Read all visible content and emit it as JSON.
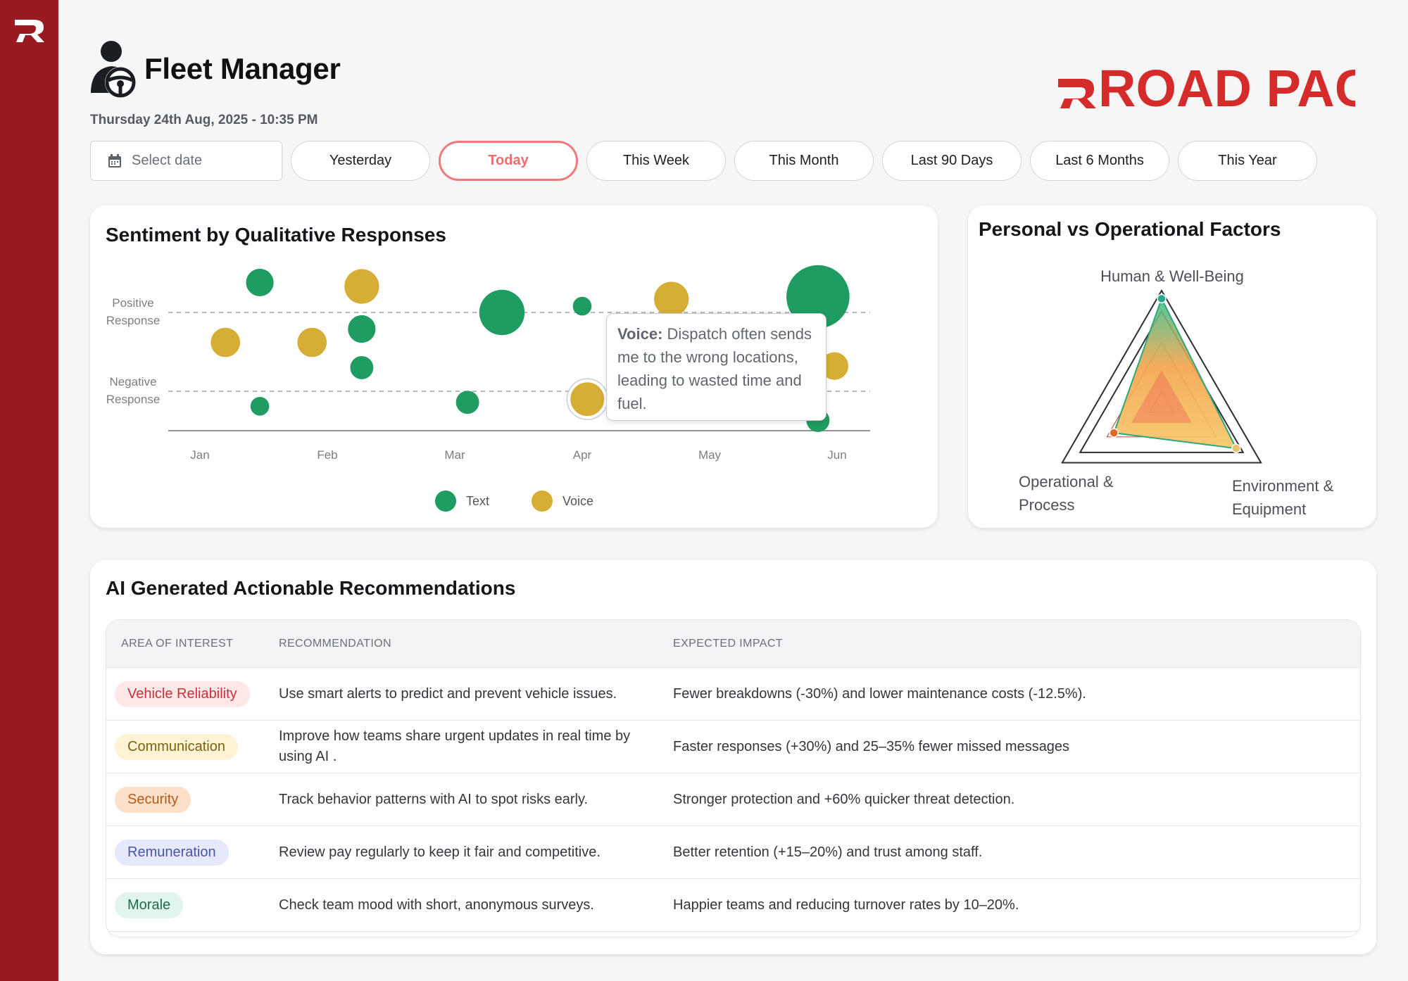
{
  "app": {
    "brand": "ROAD PACT",
    "title": "Fleet Manager",
    "datetime": "Thursday 24th Aug, 2025 - 10:35 PM"
  },
  "filters": {
    "date_placeholder": "Select date",
    "options": [
      "Yesterday",
      "Today",
      "This Week",
      "This Month",
      "Last 90 Days",
      "Last 6 Months",
      "This Year"
    ],
    "selected": "Today"
  },
  "sentiment": {
    "title": "Sentiment by Qualitative Responses",
    "tooltip": {
      "label": "Voice:",
      "text": "Dispatch often sends me to the wrong locations, leading to wasted time and fuel."
    },
    "chart_data": {
      "type": "scatter",
      "x_ticks": [
        "Jan",
        "Feb",
        "Mar",
        "Apr",
        "May",
        "Jun"
      ],
      "y_ticks": [
        "Positive Response",
        "Negative Response"
      ],
      "series": [
        {
          "name": "Text",
          "color": "#1f9c62",
          "points": [
            {
              "x": 1.47,
              "y": 1.38,
              "size": 2
            },
            {
              "x": 2.27,
              "y": 0.79,
              "size": 2
            },
            {
              "x": 1.47,
              "y": -0.19,
              "size": 1
            },
            {
              "x": 2.27,
              "y": 0.3,
              "size": 1.5
            },
            {
              "x": 3.37,
              "y": 1.0,
              "size": 4
            },
            {
              "x": 3.1,
              "y": -0.14,
              "size": 1.5
            },
            {
              "x": 4.0,
              "y": 1.08,
              "size": 1
            },
            {
              "x": 5.85,
              "y": 1.2,
              "size": 6
            },
            {
              "x": 5.85,
              "y": -0.37,
              "size": 1.5
            }
          ]
        },
        {
          "name": "Voice",
          "color": "#d6ae35",
          "points": [
            {
              "x": 1.2,
              "y": 0.62,
              "size": 2.2
            },
            {
              "x": 1.88,
              "y": 0.62,
              "size": 2.2
            },
            {
              "x": 2.27,
              "y": 1.33,
              "size": 2.8
            },
            {
              "x": 4.7,
              "y": 1.17,
              "size": 2.8
            },
            {
              "x": 5.98,
              "y": 0.32,
              "size": 2
            },
            {
              "x": 4.04,
              "y": -0.1,
              "size": 3
            }
          ]
        }
      ]
    }
  },
  "factors": {
    "title": "Personal vs Operational Factors",
    "chart_data": {
      "type": "radar",
      "axes": [
        "Human & Well-Being",
        "Operational & Process",
        "Environment & Equipment"
      ],
      "series": [
        {
          "values": [
            0.93,
            0.48,
            0.75
          ]
        }
      ]
    }
  },
  "recommendations": {
    "title": "AI Generated Actionable Recommendations",
    "headers": [
      "AREA OF INTEREST",
      "RECOMMENDATION",
      "EXPECTED IMPACT"
    ],
    "rows": [
      {
        "area": "Vehicle Reliability",
        "rec": "Use smart alerts to predict and prevent vehicle issues.",
        "impact": "Fewer breakdowns (-30%) and lower maintenance costs (-12.5%).",
        "bg": "#fde7e7",
        "fg": "#c5333a"
      },
      {
        "area": "Communication",
        "rec": "Improve how teams share urgent updates in real time by using AI .",
        "impact": "Faster responses (+30%)  and 25–35% fewer missed messages",
        "bg": "#fdf3d4",
        "fg": "#7b6214"
      },
      {
        "area": "Security",
        "rec": "Track behavior patterns with AI to spot risks early.",
        "impact": "Stronger protection and +60% quicker threat detection.",
        "bg": "#fde0c9",
        "fg": "#b5591a"
      },
      {
        "area": "Remuneration",
        "rec": "Review pay regularly to keep it fair and competitive.",
        "impact": "Better retention (+15–20%) and trust among staff.",
        "bg": "#e6e9fb",
        "fg": "#4b55a6"
      },
      {
        "area": "Morale",
        "rec": "Check team mood with short, anonymous surveys.",
        "impact": "Happier teams and reducing turnover rates by 10–20%.",
        "bg": "#e2f5ec",
        "fg": "#1e6c47"
      }
    ]
  }
}
